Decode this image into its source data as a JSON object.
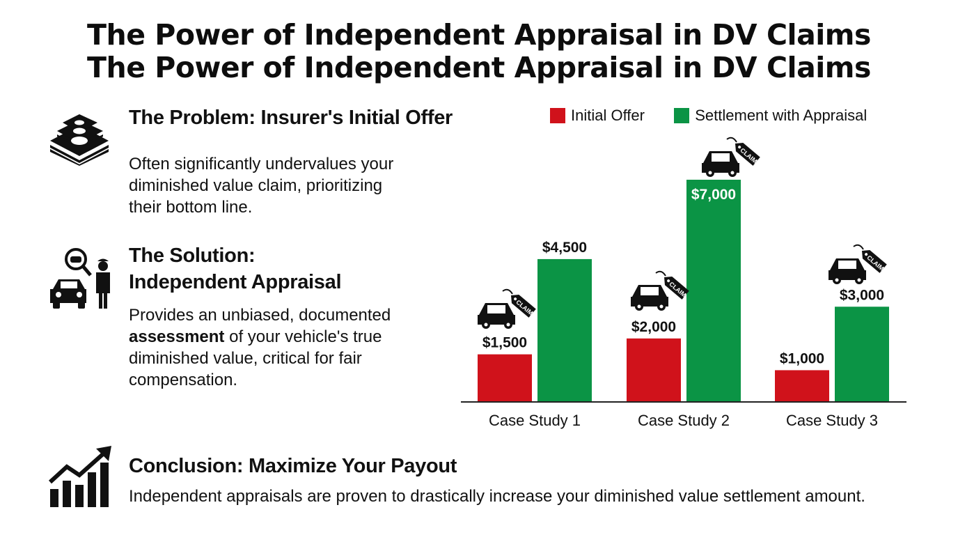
{
  "title": {
    "line1": "The Power of Independent Appraisal in DV Claims",
    "line2": "The Power of Independent Appraisal in DV Claims"
  },
  "problem": {
    "heading": "The Problem: Insurer's Initial Offer",
    "body": "Often significantly undervalues your diminished value claim, prioritizing their bottom line.",
    "icon": "money-stack-icon"
  },
  "solution": {
    "heading_line1": "The Solution:",
    "heading_line2": "Independent Appraisal",
    "body_pre": "Provides an unbiased, documented",
    "body_bold": "assessment",
    "body_post": "of your vehicle's true diminished value, critical for fair compensation.",
    "icon": "appraiser-car-icon"
  },
  "conclusion": {
    "heading": "Conclusion: Maximize Your Payout",
    "body": "Independent appraisals are proven to drastically increase your diminished value settlement amount.",
    "icon": "growth-chart-icon"
  },
  "chart_data": {
    "type": "bar",
    "categories": [
      "Case Study 1",
      "Case Study 2",
      "Case Study 3"
    ],
    "series": [
      {
        "name": "Initial Offer",
        "values": [
          1500,
          2000,
          1000
        ],
        "color": "#d0121b"
      },
      {
        "name": "Settlement with Appraisal",
        "values": [
          4500,
          7000,
          3000
        ],
        "color": "#0b9445"
      }
    ],
    "data_labels": [
      [
        "$1,500",
        "$2,000",
        "$1,000"
      ],
      [
        "$4,500",
        "$7,000",
        "$3,000"
      ]
    ],
    "claim_tag_text": "CLAIM",
    "ylim": [
      0,
      7000
    ],
    "grid": false,
    "legend_position": "top"
  }
}
